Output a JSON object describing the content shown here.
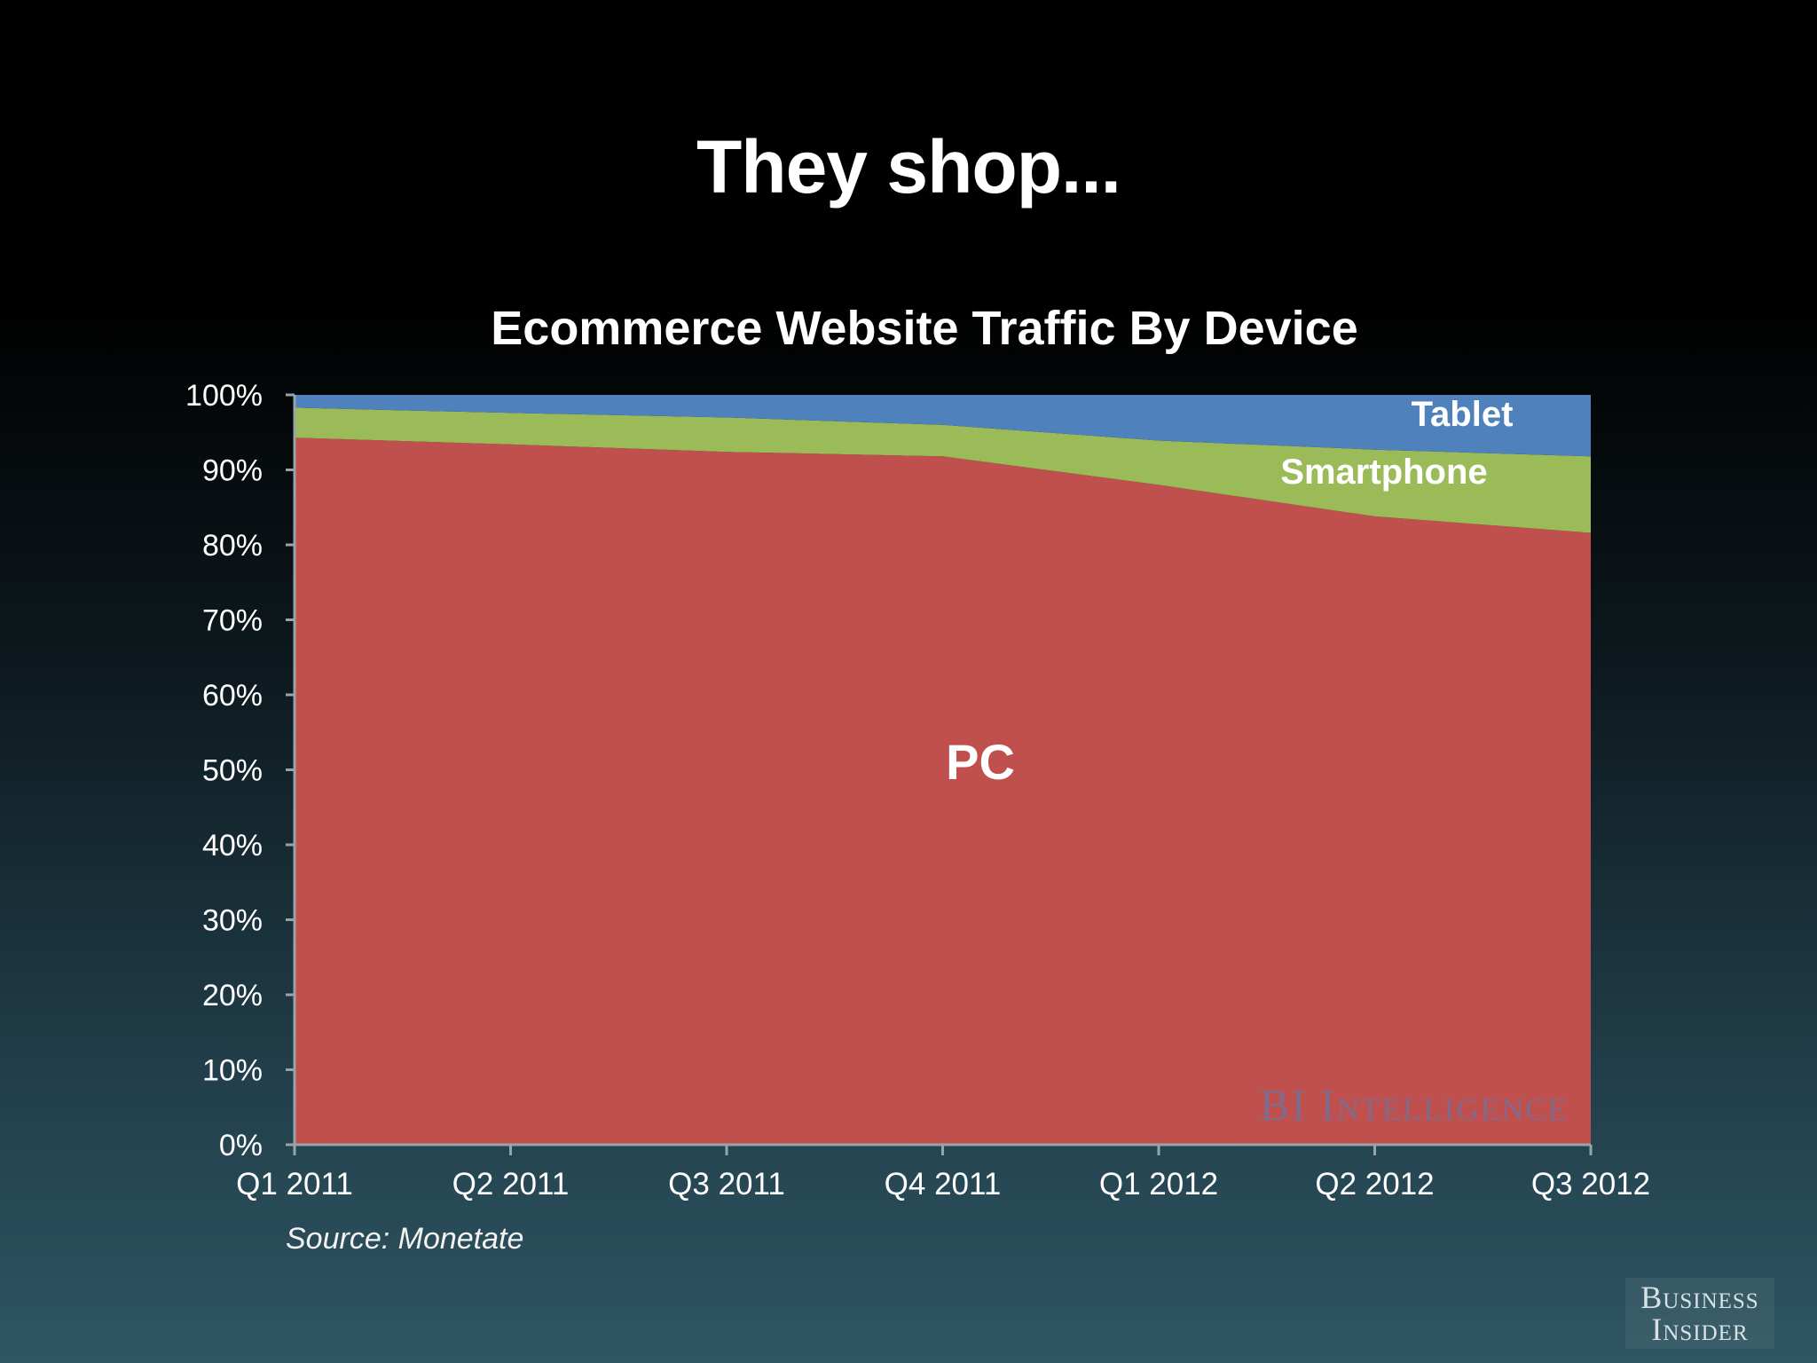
{
  "slide_title": "They shop...",
  "source": "Source: Monetate",
  "watermark": "BI Intelligence",
  "logo": {
    "line1": "Business",
    "line2": "Insider"
  },
  "colors": {
    "pc": "#c0504d",
    "smartphone": "#9bbb59",
    "tablet": "#4f81bd"
  },
  "chart_data": {
    "type": "area",
    "stacked": true,
    "title": "Ecommerce Website Traffic By Device",
    "categories": [
      "Q1 2011",
      "Q2 2011",
      "Q3 2011",
      "Q4 2011",
      "Q1 2012",
      "Q2 2012",
      "Q3 2012"
    ],
    "series": [
      {
        "name": "PC",
        "values": [
          94.3,
          93.4,
          92.4,
          91.8,
          88.0,
          83.8,
          81.6
        ]
      },
      {
        "name": "Smartphone",
        "values": [
          4.0,
          4.2,
          4.6,
          4.2,
          5.9,
          8.9,
          10.2
        ]
      },
      {
        "name": "Tablet",
        "values": [
          1.7,
          2.4,
          3.0,
          4.0,
          6.1,
          7.3,
          8.2
        ]
      }
    ],
    "ylim": [
      0,
      100
    ],
    "yticks": [
      "0%",
      "10%",
      "20%",
      "30%",
      "40%",
      "50%",
      "60%",
      "70%",
      "80%",
      "90%",
      "100%"
    ],
    "legend": "labels inside areas",
    "grid": false
  }
}
